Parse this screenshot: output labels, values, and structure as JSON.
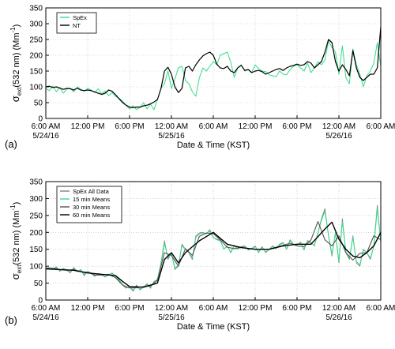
{
  "chart_data": [
    {
      "type": "line",
      "panel_label": "(a)",
      "ylabel": "σ",
      "ylabel_sub": "ext",
      "ylabel_rest": "(532 nm) (Mm",
      "ylabel_sup": "-1",
      "ylabel_close": ")",
      "xlabel": "Date & Time (KST)",
      "ylim": [
        0,
        350
      ],
      "yticks": [
        "0",
        "50",
        "100",
        "150",
        "200",
        "250",
        "300",
        "350"
      ],
      "xticks": [
        {
          "line1": "6:00 AM",
          "line2": "5/24/16"
        },
        {
          "line1": "12:00 PM",
          "line2": ""
        },
        {
          "line1": "6:00 PM",
          "line2": ""
        },
        {
          "line1": "12:00 AM",
          "line2": "5/25/16"
        },
        {
          "line1": "6:00 AM",
          "line2": ""
        },
        {
          "line1": "12:00 PM",
          "line2": ""
        },
        {
          "line1": "6:00 PM",
          "line2": ""
        },
        {
          "line1": "12:00 AM",
          "line2": "5/26/16"
        },
        {
          "line1": "6:00 AM",
          "line2": ""
        }
      ],
      "x_unit": "hours from 5/24/16 6:00 AM",
      "xlim": [
        0,
        48
      ],
      "legend": [
        "SpEx",
        "NT"
      ],
      "series": [
        {
          "name": "SpEx",
          "color": "#33dd88",
          "x": [
            0,
            0.5,
            1,
            1.5,
            2,
            2.5,
            3,
            3.5,
            4,
            4.5,
            5,
            5.5,
            6,
            6.5,
            7,
            7.5,
            8,
            8.5,
            9,
            9.5,
            10,
            10.5,
            11,
            11.5,
            12,
            12.5,
            13,
            13.5,
            14,
            14.5,
            15,
            15.5,
            16,
            16.5,
            17,
            17.5,
            18,
            18.5,
            19,
            19.5,
            20,
            20.5,
            21,
            21.5,
            22,
            22.5,
            23,
            23.5,
            24,
            24.5,
            25,
            25.5,
            26,
            26.5,
            27,
            27.5,
            28,
            28.5,
            29,
            29.5,
            30,
            30.5,
            31,
            31.5,
            32,
            32.5,
            33,
            33.5,
            34,
            34.5,
            35,
            35.5,
            36,
            36.5,
            37,
            37.5,
            38,
            38.5,
            39,
            39.5,
            40,
            40.5,
            41,
            41.5,
            42,
            42.5,
            43,
            43.5,
            44,
            44.5,
            45,
            45.5,
            46,
            46.5,
            47,
            47.5,
            48
          ],
          "y": [
            95,
            88,
            102,
            85,
            98,
            80,
            93,
            96,
            84,
            100,
            92,
            86,
            95,
            90,
            82,
            94,
            78,
            87,
            72,
            82,
            70,
            64,
            55,
            42,
            30,
            40,
            28,
            35,
            50,
            30,
            45,
            28,
            60,
            95,
            110,
            150,
            95,
            125,
            160,
            165,
            120,
            110,
            85,
            70,
            128,
            160,
            150,
            165,
            180,
            170,
            200,
            205,
            210,
            178,
            130,
            160,
            170,
            150,
            155,
            145,
            170,
            158,
            150,
            148,
            138,
            135,
            132,
            150,
            140,
            138,
            155,
            165,
            170,
            160,
            150,
            175,
            145,
            160,
            180,
            170,
            185,
            245,
            225,
            210,
            140,
            230,
            130,
            110,
            220,
            170,
            140,
            100,
            135,
            150,
            175,
            240,
            165
          ]
        },
        {
          "name": "NT",
          "color": "#000000",
          "x": [
            0,
            0.5,
            1,
            1.5,
            2,
            2.5,
            3,
            3.5,
            4,
            4.5,
            5,
            5.5,
            6,
            6.5,
            7,
            7.5,
            8,
            8.5,
            9,
            9.5,
            10,
            10.5,
            11,
            11.5,
            12,
            12.5,
            13,
            13.5,
            14,
            14.5,
            15,
            15.5,
            16,
            16.5,
            17,
            17.5,
            18,
            18.5,
            19,
            19.5,
            20,
            20.5,
            21,
            21.5,
            22,
            22.5,
            23,
            23.5,
            24,
            24.5,
            25,
            25.5,
            26,
            26.5,
            27,
            27.5,
            28,
            28.5,
            29,
            29.5,
            30,
            30.5,
            31,
            31.5,
            32,
            32.5,
            33,
            33.5,
            34,
            34.5,
            35,
            35.5,
            36,
            36.5,
            37,
            37.5,
            38,
            38.5,
            39,
            39.5,
            40,
            40.5,
            41,
            41.5,
            42,
            42.5,
            43,
            43.5,
            44,
            44.5,
            45,
            45.5,
            46,
            46.5,
            47,
            47.5,
            48
          ],
          "y": [
            100,
            102,
            98,
            100,
            96,
            92,
            95,
            94,
            90,
            96,
            90,
            88,
            90,
            88,
            84,
            80,
            76,
            80,
            90,
            86,
            75,
            62,
            50,
            42,
            36,
            34,
            36,
            36,
            40,
            42,
            46,
            52,
            60,
            95,
            150,
            162,
            140,
            100,
            82,
            95,
            160,
            165,
            150,
            170,
            185,
            198,
            205,
            210,
            200,
            172,
            160,
            158,
            165,
            150,
            145,
            160,
            168,
            152,
            155,
            145,
            150,
            152,
            148,
            140,
            145,
            150,
            155,
            158,
            152,
            160,
            165,
            168,
            172,
            168,
            170,
            180,
            175,
            160,
            170,
            180,
            210,
            250,
            240,
            180,
            150,
            170,
            155,
            135,
            215,
            160,
            130,
            120,
            130,
            140,
            140,
            160,
            290
          ]
        }
      ]
    },
    {
      "type": "line",
      "panel_label": "(b)",
      "ylabel": "σ",
      "ylabel_sub": "ext",
      "ylabel_rest": "(532 nm) (Mm",
      "ylabel_sup": "-1",
      "ylabel_close": ")",
      "xlabel": "Date & Time (KST)",
      "ylim": [
        0,
        350
      ],
      "yticks": [
        "0",
        "50",
        "100",
        "150",
        "200",
        "250",
        "300",
        "350"
      ],
      "xticks": [
        {
          "line1": "6:00 AM",
          "line2": "5/24/16"
        },
        {
          "line1": "12:00 PM",
          "line2": ""
        },
        {
          "line1": "6:00 PM",
          "line2": ""
        },
        {
          "line1": "12:00 AM",
          "line2": "5/25/16"
        },
        {
          "line1": "6:00 AM",
          "line2": ""
        },
        {
          "line1": "12:00 PM",
          "line2": ""
        },
        {
          "line1": "6:00 PM",
          "line2": ""
        },
        {
          "line1": "12:00 AM",
          "line2": "5/26/16"
        },
        {
          "line1": "6:00 AM",
          "line2": ""
        }
      ],
      "x_unit": "hours from 5/24/16 6:00 AM",
      "xlim": [
        0,
        48
      ],
      "legend": [
        "SpEx All Data",
        "15 min Means",
        "30 min Means",
        "60 min Means"
      ],
      "series": [
        {
          "name": "SpEx All Data",
          "color": "#808080",
          "x": [
            0,
            0.5,
            1,
            1.5,
            2,
            2.5,
            3,
            3.5,
            4,
            4.5,
            5,
            5.5,
            6,
            6.5,
            7,
            7.5,
            8,
            8.5,
            9,
            9.5,
            10,
            10.5,
            11,
            11.5,
            12,
            12.5,
            13,
            13.5,
            14,
            14.5,
            15,
            15.5,
            16,
            16.5,
            17,
            17.5,
            18,
            18.5,
            19,
            19.5,
            20,
            20.5,
            21,
            21.5,
            22,
            22.5,
            23,
            23.5,
            24,
            24.5,
            25,
            25.5,
            26,
            26.5,
            27,
            27.5,
            28,
            28.5,
            29,
            29.5,
            30,
            30.5,
            31,
            31.5,
            32,
            32.5,
            33,
            33.5,
            34,
            34.5,
            35,
            35.5,
            36,
            36.5,
            37,
            37.5,
            38,
            38.5,
            39,
            39.5,
            40,
            40.5,
            41,
            41.5,
            42,
            42.5,
            43,
            43.5,
            44,
            44.5,
            45,
            45.5,
            46,
            46.5,
            47,
            47.5,
            48
          ],
          "y": [
            92,
            95,
            90,
            98,
            85,
            94,
            88,
            80,
            96,
            84,
            90,
            72,
            85,
            80,
            70,
            78,
            75,
            68,
            74,
            80,
            70,
            58,
            44,
            35,
            40,
            26,
            44,
            30,
            38,
            48,
            35,
            55,
            60,
            110,
            175,
            120,
            140,
            90,
            100,
            165,
            150,
            140,
            120,
            190,
            198,
            200,
            195,
            208,
            185,
            180,
            178,
            150,
            160,
            140,
            162,
            150,
            158,
            160,
            148,
            152,
            160,
            140,
            158,
            140,
            150,
            160,
            152,
            165,
            170,
            150,
            178,
            165,
            162,
            172,
            148,
            176,
            170,
            160,
            200,
            240,
            270,
            190,
            130,
            200,
            110,
            240,
            140,
            120,
            190,
            110,
            100,
            150,
            140,
            120,
            160,
            280,
            170
          ]
        },
        {
          "name": "15 min Means",
          "color": "#33dd88",
          "x": [
            0,
            0.5,
            1,
            1.5,
            2,
            2.5,
            3,
            3.5,
            4,
            4.5,
            5,
            5.5,
            6,
            6.5,
            7,
            7.5,
            8,
            8.5,
            9,
            9.5,
            10,
            10.5,
            11,
            11.5,
            12,
            12.5,
            13,
            13.5,
            14,
            14.5,
            15,
            15.5,
            16,
            16.5,
            17,
            17.5,
            18,
            18.5,
            19,
            19.5,
            20,
            20.5,
            21,
            21.5,
            22,
            22.5,
            23,
            23.5,
            24,
            24.5,
            25,
            25.5,
            26,
            26.5,
            27,
            27.5,
            28,
            28.5,
            29,
            29.5,
            30,
            30.5,
            31,
            31.5,
            32,
            32.5,
            33,
            33.5,
            34,
            34.5,
            35,
            35.5,
            36,
            36.5,
            37,
            37.5,
            38,
            38.5,
            39,
            39.5,
            40,
            40.5,
            41,
            41.5,
            42,
            42.5,
            43,
            43.5,
            44,
            44.5,
            45,
            45.5,
            46,
            46.5,
            47,
            47.5,
            48
          ],
          "y": [
            94,
            96,
            92,
            95,
            88,
            92,
            90,
            84,
            92,
            86,
            88,
            76,
            84,
            80,
            72,
            76,
            74,
            70,
            74,
            78,
            70,
            60,
            46,
            38,
            38,
            30,
            40,
            33,
            38,
            44,
            38,
            52,
            62,
            105,
            168,
            125,
            138,
            95,
            102,
            160,
            150,
            142,
            125,
            185,
            195,
            198,
            196,
            204,
            185,
            178,
            175,
            152,
            158,
            142,
            160,
            150,
            156,
            158,
            150,
            152,
            158,
            142,
            155,
            142,
            150,
            158,
            152,
            163,
            168,
            152,
            175,
            165,
            163,
            170,
            150,
            174,
            168,
            162,
            198,
            236,
            262,
            192,
            135,
            198,
            115,
            232,
            142,
            124,
            186,
            114,
            104,
            148,
            140,
            124,
            158,
            270,
            172
          ]
        },
        {
          "name": "30 min Means",
          "color": "#555555",
          "x": [
            0,
            1,
            2,
            3,
            4,
            5,
            6,
            7,
            8,
            9,
            10,
            11,
            12,
            13,
            14,
            15,
            16,
            17,
            18,
            19,
            20,
            21,
            22,
            23,
            24,
            25,
            26,
            27,
            28,
            29,
            30,
            31,
            32,
            33,
            34,
            35,
            36,
            37,
            38,
            39,
            40,
            41,
            42,
            43,
            44,
            45,
            46,
            47,
            48
          ],
          "y": [
            94,
            94,
            90,
            88,
            90,
            84,
            82,
            74,
            74,
            76,
            66,
            44,
            36,
            36,
            40,
            42,
            58,
            140,
            132,
            100,
            152,
            132,
            188,
            198,
            196,
            178,
            156,
            152,
            156,
            152,
            150,
            150,
            150,
            156,
            162,
            168,
            160,
            158,
            178,
            232,
            178,
            160,
            190,
            140,
            118,
            138,
            140,
            190,
            178
          ]
        },
        {
          "name": "60 min Means",
          "color": "#000000",
          "x": [
            0,
            2,
            4,
            6,
            8,
            10,
            11,
            12,
            14,
            16,
            17,
            18,
            19,
            20,
            22,
            24,
            26,
            28,
            30,
            32,
            34,
            36,
            38,
            40,
            41,
            42,
            43,
            44,
            45,
            46,
            47,
            48
          ],
          "y": [
            92,
            90,
            88,
            80,
            76,
            72,
            55,
            40,
            38,
            50,
            120,
            140,
            110,
            140,
            175,
            200,
            165,
            155,
            150,
            150,
            160,
            165,
            165,
            210,
            230,
            180,
            150,
            130,
            125,
            140,
            160,
            200
          ]
        }
      ]
    }
  ]
}
